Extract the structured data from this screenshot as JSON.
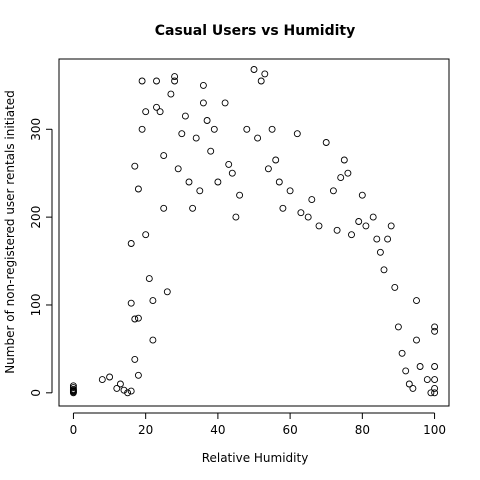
{
  "chart_data": {
    "type": "scatter",
    "title": "Casual Users vs Humidity",
    "xlabel": "Relative Humidity",
    "ylabel": "Number of non-registered user rentals initiated",
    "xlim": [
      -4,
      104
    ],
    "ylim": [
      -15,
      380
    ],
    "x_ticks": [
      0,
      20,
      40,
      60,
      80,
      100
    ],
    "y_ticks": [
      0,
      100,
      200,
      300
    ],
    "grid": false,
    "legend": "none",
    "marker": "open-circle",
    "series": [
      {
        "points": [
          [
            0,
            0
          ],
          [
            0,
            1
          ],
          [
            0,
            2
          ],
          [
            0,
            3
          ],
          [
            0,
            4
          ],
          [
            0,
            6
          ],
          [
            0,
            8
          ],
          [
            8,
            15
          ],
          [
            10,
            18
          ],
          [
            12,
            5
          ],
          [
            13,
            10
          ],
          [
            14,
            3
          ],
          [
            15,
            0
          ],
          [
            16,
            2
          ],
          [
            16,
            102
          ],
          [
            17,
            84
          ],
          [
            17,
            38
          ],
          [
            18,
            20
          ],
          [
            16,
            170
          ],
          [
            17,
            258
          ],
          [
            18,
            85
          ],
          [
            18,
            232
          ],
          [
            19,
            355
          ],
          [
            19,
            300
          ],
          [
            20,
            320
          ],
          [
            20,
            180
          ],
          [
            21,
            130
          ],
          [
            22,
            105
          ],
          [
            22,
            60
          ],
          [
            23,
            325
          ],
          [
            23,
            355
          ],
          [
            24,
            320
          ],
          [
            25,
            270
          ],
          [
            25,
            210
          ],
          [
            26,
            115
          ],
          [
            27,
            340
          ],
          [
            28,
            360
          ],
          [
            28,
            355
          ],
          [
            29,
            255
          ],
          [
            30,
            295
          ],
          [
            31,
            315
          ],
          [
            32,
            240
          ],
          [
            33,
            210
          ],
          [
            34,
            290
          ],
          [
            35,
            230
          ],
          [
            36,
            350
          ],
          [
            36,
            330
          ],
          [
            37,
            310
          ],
          [
            38,
            275
          ],
          [
            39,
            300
          ],
          [
            40,
            240
          ],
          [
            42,
            330
          ],
          [
            43,
            260
          ],
          [
            44,
            250
          ],
          [
            45,
            200
          ],
          [
            46,
            225
          ],
          [
            48,
            300
          ],
          [
            50,
            368
          ],
          [
            51,
            290
          ],
          [
            52,
            355
          ],
          [
            53,
            363
          ],
          [
            54,
            255
          ],
          [
            55,
            300
          ],
          [
            56,
            265
          ],
          [
            57,
            240
          ],
          [
            58,
            210
          ],
          [
            60,
            230
          ],
          [
            62,
            295
          ],
          [
            63,
            205
          ],
          [
            65,
            200
          ],
          [
            66,
            220
          ],
          [
            68,
            190
          ],
          [
            70,
            285
          ],
          [
            72,
            230
          ],
          [
            73,
            185
          ],
          [
            74,
            245
          ],
          [
            75,
            265
          ],
          [
            76,
            250
          ],
          [
            77,
            180
          ],
          [
            79,
            195
          ],
          [
            80,
            225
          ],
          [
            81,
            190
          ],
          [
            83,
            200
          ],
          [
            84,
            175
          ],
          [
            85,
            160
          ],
          [
            86,
            140
          ],
          [
            87,
            175
          ],
          [
            88,
            190
          ],
          [
            89,
            120
          ],
          [
            90,
            75
          ],
          [
            91,
            45
          ],
          [
            92,
            25
          ],
          [
            93,
            10
          ],
          [
            94,
            5
          ],
          [
            95,
            105
          ],
          [
            95,
            60
          ],
          [
            96,
            30
          ],
          [
            98,
            15
          ],
          [
            99,
            0
          ],
          [
            100,
            75
          ],
          [
            100,
            70
          ],
          [
            100,
            30
          ],
          [
            100,
            15
          ],
          [
            100,
            5
          ],
          [
            100,
            0
          ]
        ]
      }
    ]
  }
}
